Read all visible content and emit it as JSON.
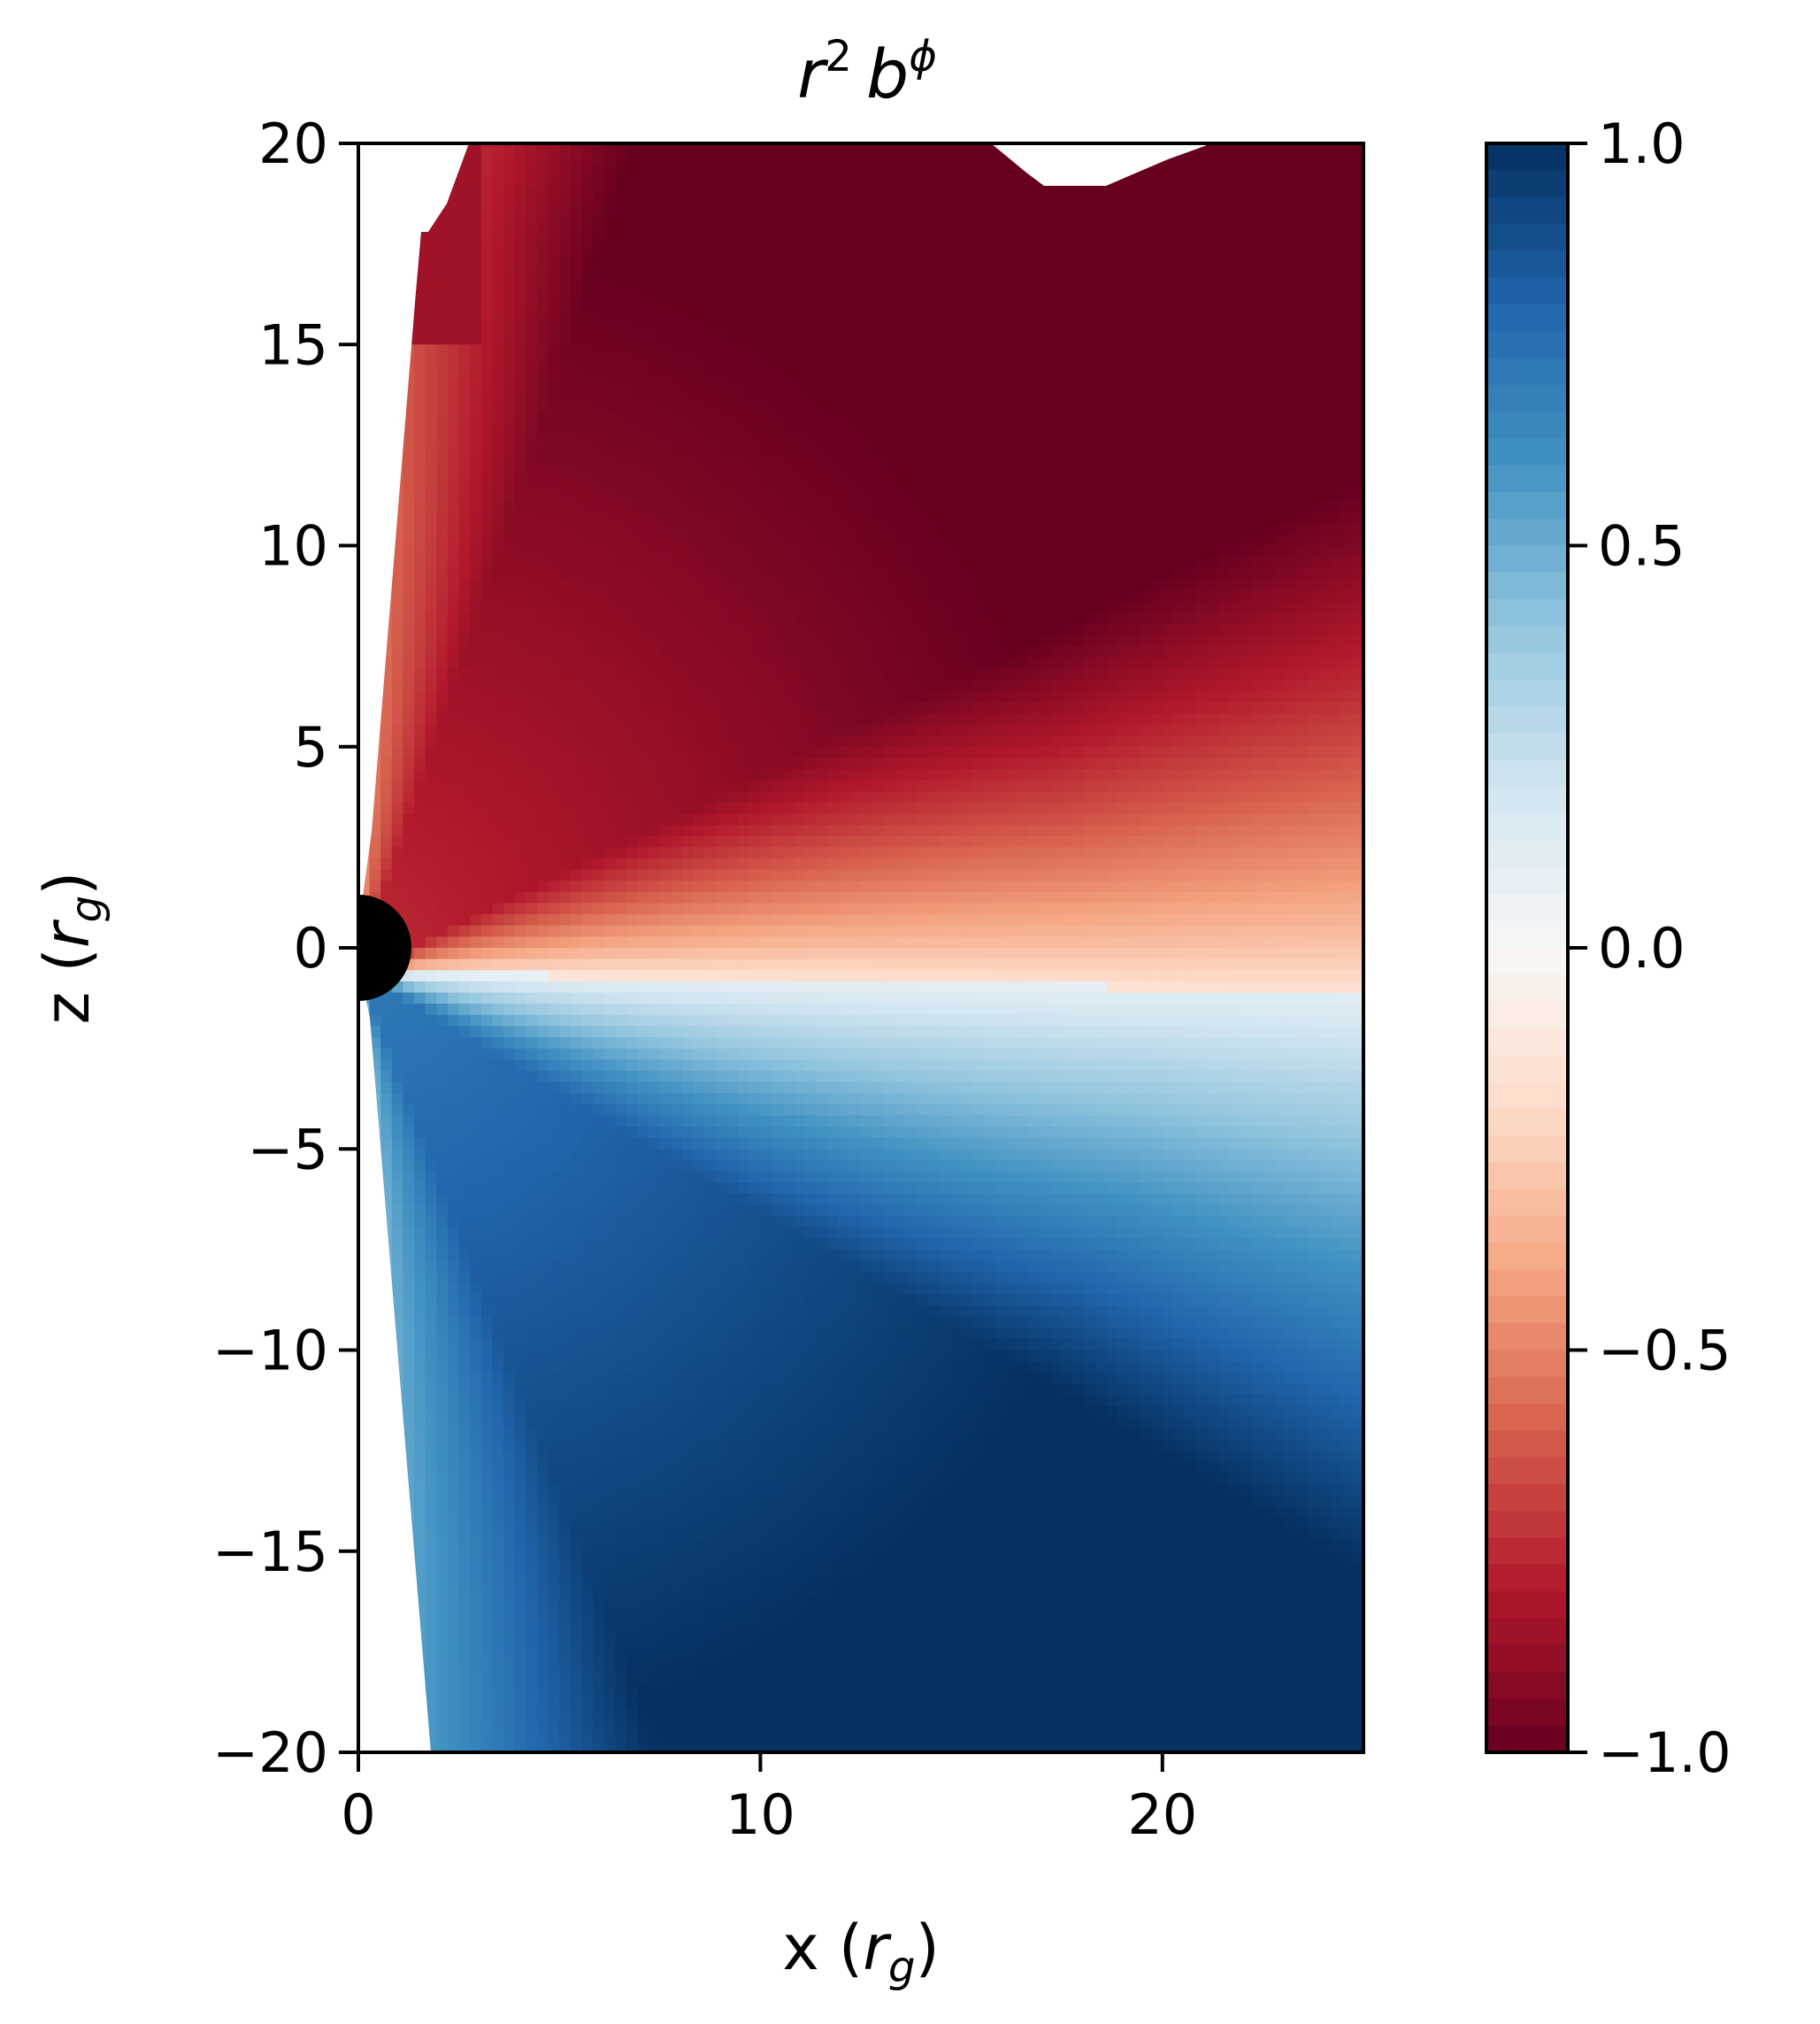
{
  "chart_data": {
    "type": "heatmap",
    "title": "r² b^φ",
    "title_parts": {
      "base1": "r",
      "sup1": "2",
      "base2": "b",
      "sup2": "ϕ"
    },
    "xlabel": "x (r_g)",
    "xlabel_parts": {
      "prefix": "x (",
      "var": "r",
      "sub": "g",
      "suffix": ")"
    },
    "ylabel": "z (r_g)",
    "ylabel_parts": {
      "prefix": "z (",
      "var": "r",
      "sub": "g",
      "suffix": ")"
    },
    "xlim": [
      0,
      25
    ],
    "ylim": [
      -20,
      20
    ],
    "xticks": [
      0,
      10,
      20
    ],
    "xtick_labels": [
      "0",
      "10",
      "20"
    ],
    "yticks": [
      20,
      15,
      10,
      5,
      0,
      -5,
      -10,
      -15,
      -20
    ],
    "ytick_labels": [
      "20",
      "15",
      "10",
      "5",
      "0",
      "−5",
      "−10",
      "−15",
      "−20"
    ],
    "colorbar": {
      "range": [
        -1.0,
        1.0
      ],
      "ticks": [
        1.0,
        0.5,
        0.0,
        -0.5,
        -1.0
      ],
      "tick_labels": [
        "1.0",
        "0.5",
        "0.0",
        "−0.5",
        "−1.0"
      ],
      "colormap": "RdBu",
      "colors": [
        "#67001f",
        "#b2182b",
        "#d6604d",
        "#f4a582",
        "#fddbc7",
        "#f7f7f7",
        "#d1e5f0",
        "#92c5de",
        "#4393c3",
        "#2166ac",
        "#053061"
      ]
    },
    "field_description": "Upper half (z>0) negative values (red), strongest near top-right; lower half (z<0) positive values (blue), strongest near bottom-right; near zero along a band slightly below the equator at large x.",
    "horizon": {
      "x": 0,
      "z": 0,
      "radius": 1.3,
      "color": "#000000"
    },
    "grid": false,
    "legend": "colorbar-right"
  }
}
